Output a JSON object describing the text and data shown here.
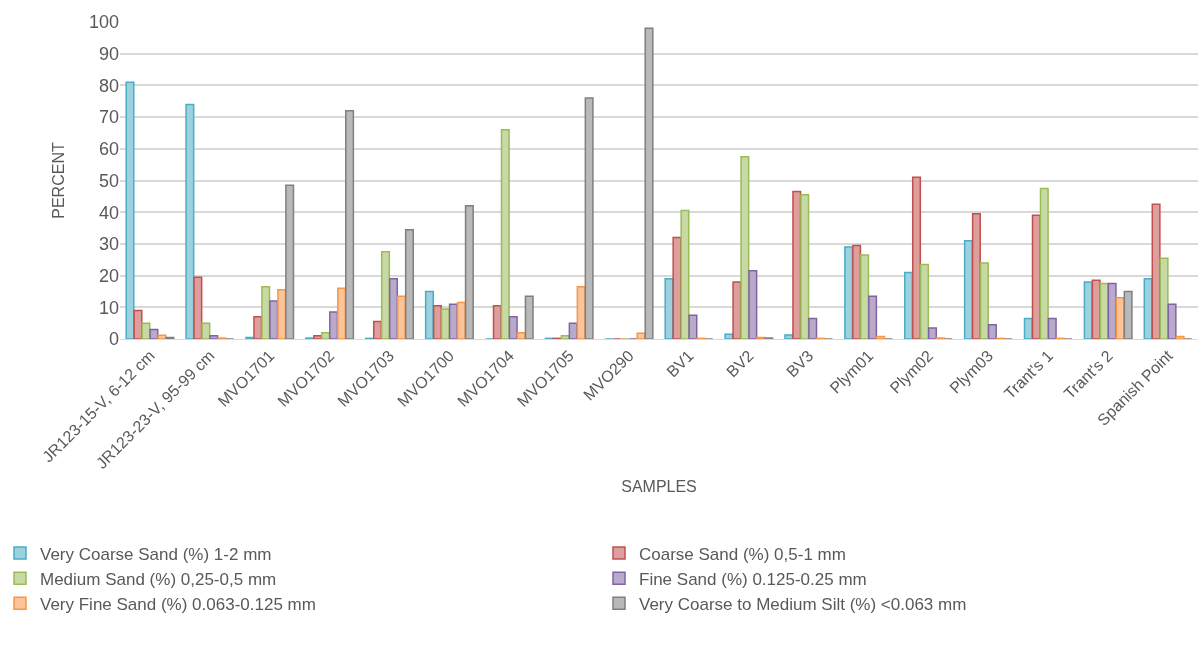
{
  "chart_data": {
    "type": "bar",
    "xlabel": "SAMPLES",
    "ylabel": "PERCENT",
    "categories": [
      "JR123-15-V, 6-12 cm",
      "JR123-23-V, 95-99 cm",
      "MVO1701",
      "MVO1702",
      "MVO1703",
      "MVO1700",
      "MVO1704",
      "MVO1705",
      "MVO290",
      "BV1",
      "BV2",
      "BV3",
      "Plym01",
      "Plym02",
      "Plym03",
      "Trant's 1",
      "Trant's 2",
      "Spanish Point"
    ],
    "series": [
      {
        "name": "Very Coarse Sand (%) 1-2 mm",
        "color": "#4bacc6",
        "values": [
          81,
          74,
          0.5,
          0.3,
          0.2,
          15,
          0,
          0.2,
          0,
          19,
          1.5,
          1.3,
          29,
          21,
          31,
          6.5,
          18,
          19
        ]
      },
      {
        "name": "Coarse Sand (%) 0,5-1 mm",
        "color": "#c0504d",
        "values": [
          9,
          19.5,
          7,
          1,
          5.5,
          10.5,
          10.5,
          0.2,
          0,
          32,
          18,
          46.5,
          29.5,
          51,
          39.5,
          39,
          18.5,
          42.5
        ]
      },
      {
        "name": "Medium Sand (%) 0,25-0,5 mm",
        "color": "#9bbb59",
        "values": [
          5,
          5,
          16.5,
          2,
          27.5,
          9.5,
          66,
          1,
          0,
          40.5,
          57.5,
          45.5,
          26.5,
          23.5,
          24,
          47.5,
          17.5,
          25.5
        ]
      },
      {
        "name": "Fine Sand (%) 0.125-0.25 mm",
        "color": "#8064a2",
        "values": [
          3,
          1,
          12,
          8.5,
          19,
          11,
          7,
          5,
          0,
          7.5,
          21.5,
          6.5,
          13.5,
          3.5,
          4.5,
          6.5,
          17.5,
          11
        ]
      },
      {
        "name": "Very Fine Sand (%) 0.063-0.125 mm",
        "color": "#f79646",
        "values": [
          1.2,
          0.3,
          15.5,
          16,
          13.5,
          11.5,
          2,
          16.5,
          1.8,
          0.2,
          0.5,
          0.2,
          0.8,
          0.3,
          0.2,
          0.2,
          13,
          0.8
        ]
      },
      {
        "name": "Very Coarse to Medium Silt (%) <0.063 mm",
        "color": "#7f7f7f",
        "values": [
          0.5,
          0,
          48.5,
          72,
          34.5,
          42,
          13.5,
          76,
          98,
          0,
          0.3,
          0,
          0,
          0,
          0,
          0,
          15,
          0
        ]
      }
    ],
    "ylim": [
      0,
      100
    ],
    "yticks": [
      0,
      10,
      20,
      30,
      40,
      50,
      60,
      70,
      80,
      90,
      100
    ],
    "grid": "y",
    "legend": "bottom"
  }
}
